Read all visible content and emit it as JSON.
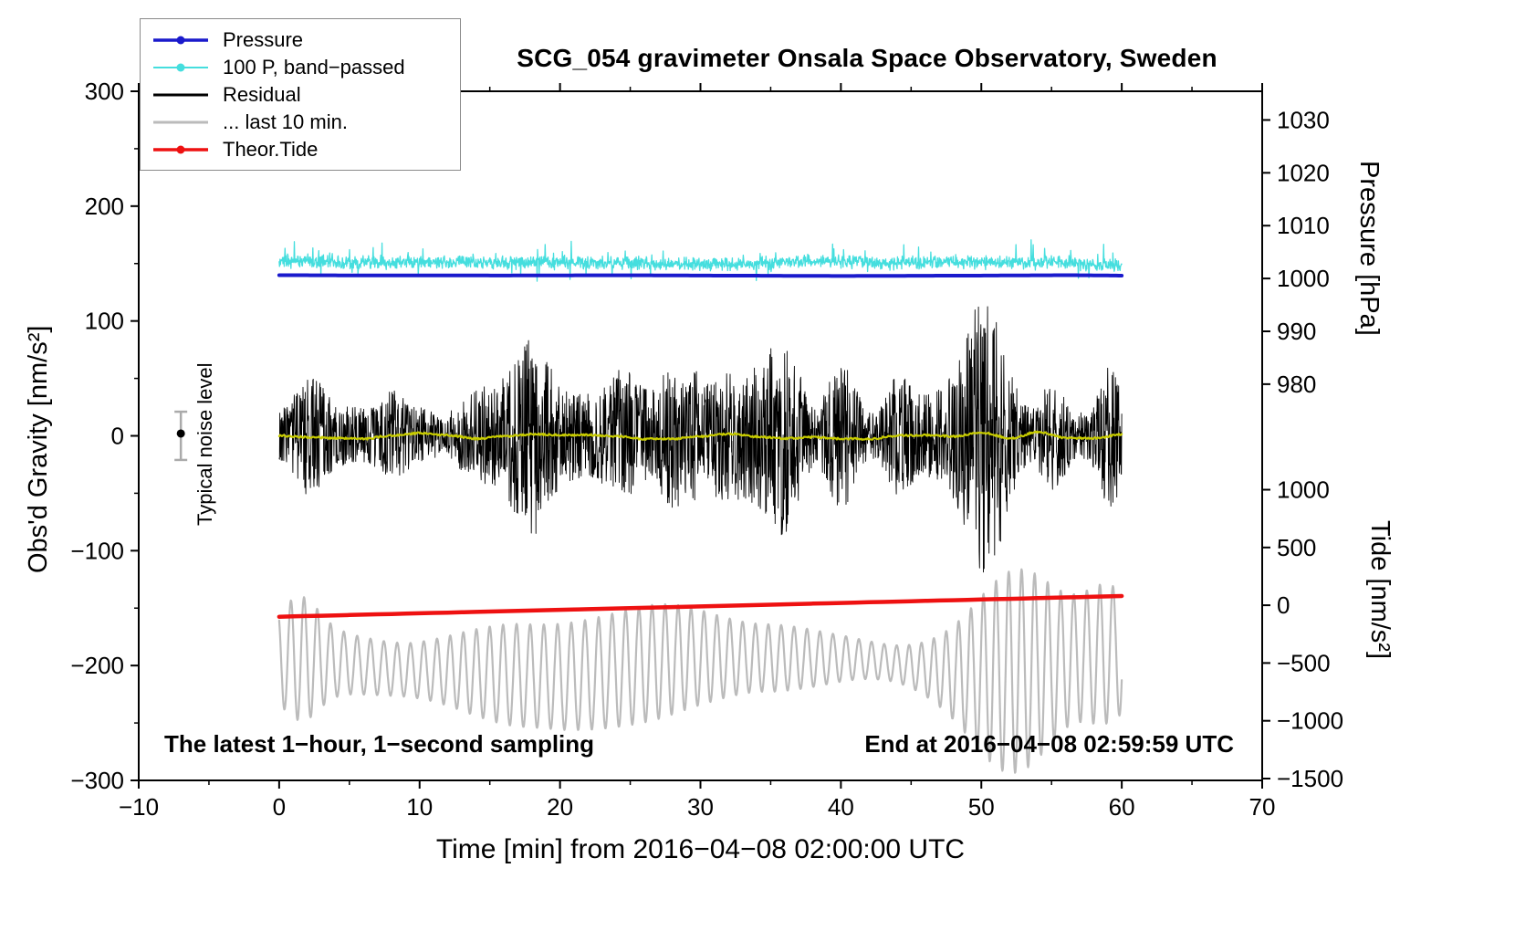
{
  "chart_data": {
    "type": "line",
    "title": "SCG_054 gravimeter Onsala Space Observatory, Sweden",
    "xlabel": "Time [min] from 2016−04−08 02:00:00 UTC",
    "x_axis": {
      "min": -10,
      "max": 70,
      "ticks": [
        -10,
        0,
        10,
        20,
        30,
        40,
        50,
        60,
        70
      ]
    },
    "y_left": {
      "label": "Obs'd Gravity [nm/s²]",
      "min": -300,
      "max": 300,
      "ticks": [
        -300,
        -200,
        -100,
        0,
        100,
        200,
        300
      ]
    },
    "y_right_pressure": {
      "label": "Pressure [hPa]",
      "ticks": [
        1030,
        1020,
        1010,
        1000,
        990,
        980
      ],
      "anchor_value": 1000,
      "anchor_gravity": 137,
      "gravity_per_unit": 4.6
    },
    "y_right_tide": {
      "label": "Tide [nm/s²]",
      "ticks": [
        1000,
        500,
        0,
        -500,
        -1000,
        -1500
      ],
      "anchor_value": 0,
      "anchor_gravity": -147.5,
      "gravity_per_unit": 0.1006
    },
    "legend": [
      {
        "label": "Pressure",
        "color": "#1a1acc",
        "marker": true,
        "line_width": 3.5
      },
      {
        "label": "100 P, band−passed",
        "color": "#45dede",
        "marker": true,
        "line_width": 2
      },
      {
        "label": "Residual",
        "color": "#000000",
        "marker": false,
        "line_width": 3
      },
      {
        "label": "... last 10 min.",
        "color": "#bbbbbb",
        "marker": false,
        "line_width": 3
      },
      {
        "label": "Theor.Tide",
        "color": "#ee1111",
        "marker": true,
        "line_width": 3.5
      }
    ],
    "time_range_min": [
      0,
      60
    ],
    "noise_seed": 20160408,
    "series": [
      {
        "id": "residual_last10min",
        "color": "#bbbbbb",
        "width": 2.2,
        "kind": "oscillation",
        "base": -201,
        "period_min": 0.93,
        "amp_base": 38,
        "amp_var": 24,
        "wander": 15,
        "bursts": [
          {
            "t": 1.6,
            "a": 24,
            "w": 1.2
          },
          {
            "t": 52.5,
            "a": 46,
            "w": 2.6
          },
          {
            "t": 59,
            "a": 28,
            "w": 1.5
          }
        ]
      },
      {
        "id": "theor_tide",
        "color": "#ee1111",
        "width": 4.5,
        "kind": "linear",
        "start": -157.5,
        "end": -139.5,
        "tide_axis_start": -95,
        "tide_axis_end": 85
      },
      {
        "id": "residual",
        "color": "#000000",
        "width": 0.9,
        "kind": "burst_noise",
        "base": 0,
        "amp_base": 15,
        "amp_var": 42,
        "bursts": [
          {
            "t": 2.2,
            "a": 38,
            "w": 0.9
          },
          {
            "t": 8,
            "a": 22,
            "w": 0.8
          },
          {
            "t": 18,
            "a": 48,
            "w": 1.1
          },
          {
            "t": 24.5,
            "a": 26,
            "w": 0.9
          },
          {
            "t": 27.5,
            "a": 34,
            "w": 0.9
          },
          {
            "t": 36,
            "a": 36,
            "w": 1.0
          },
          {
            "t": 40,
            "a": 30,
            "w": 0.9
          },
          {
            "t": 44,
            "a": 24,
            "w": 0.8
          },
          {
            "t": 50.3,
            "a": 72,
            "w": 1.1
          },
          {
            "t": 55,
            "a": 26,
            "w": 0.8
          },
          {
            "t": 59.2,
            "a": 46,
            "w": 0.7
          }
        ]
      },
      {
        "id": "residual_smoothed",
        "color": "#c8cc00",
        "width": 2.2,
        "kind": "smooth",
        "base": 0,
        "amp": 3.5
      },
      {
        "id": "pressure_bandpassed",
        "color": "#45dede",
        "width": 1.3,
        "kind": "noise",
        "base": 150.5,
        "amp": 6.5,
        "spike_amp": 15
      },
      {
        "id": "pressure",
        "color": "#1a1acc",
        "width": 4,
        "kind": "flat",
        "base": 139.5,
        "noise": 0.7,
        "pressure_hpa": 1000.5
      }
    ],
    "annotations": {
      "sampling_note": "The latest 1−hour, 1−second sampling",
      "end_time_note": "End at 2016−04−08 02:59:59 UTC",
      "noise_label": "Typical noise level",
      "noise_marker": {
        "x_min": -7,
        "gravity": 0,
        "error": 21
      }
    }
  }
}
